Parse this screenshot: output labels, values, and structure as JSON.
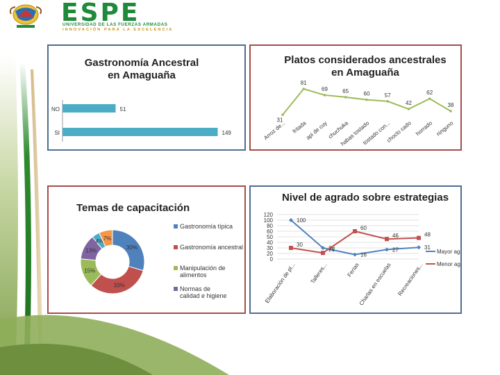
{
  "header": {
    "brand": "ESPE",
    "subtitle_1": "UNIVERSIDAD DE LAS FUERZAS ARMADAS",
    "subtitle_2": "INNOVACIÓN PARA LA EXCELENCIA"
  },
  "colors": {
    "blue": "#4bacc6",
    "green_line": "#9bbb59",
    "series_blue": "#4f81bd",
    "series_red": "#c0504d",
    "purple": "#8064a2",
    "orange": "#f79646",
    "brand_green": "#1e8a3a"
  },
  "chart_data": [
    {
      "id": "gastronomia",
      "type": "bar",
      "orientation": "horizontal",
      "title": "Gastronomía Ancestral en Amaguaña",
      "categories": [
        "NO",
        "SI"
      ],
      "values": [
        51,
        149
      ],
      "data_labels": [
        "51",
        "149"
      ],
      "xlim": [
        0,
        160
      ]
    },
    {
      "id": "platos",
      "type": "line",
      "title": "Platos considerados ancestrales en Amaguaña",
      "categories": [
        "Arroz de...",
        "fritada",
        "api de cuy",
        "chuchuka",
        "habas tostado",
        "tostado con...",
        "choclo cado",
        "horrado",
        "ninguno"
      ],
      "values": [
        31,
        81,
        69,
        65,
        60,
        57,
        42,
        62,
        38
      ],
      "data_labels": [
        "31",
        "81",
        "69",
        "65",
        "60",
        "57",
        "42",
        "62",
        "38"
      ]
    },
    {
      "id": "temas",
      "type": "pie",
      "title": "Temas de capacitación",
      "slices": [
        {
          "label": "Gastronomía típica",
          "value": 30,
          "display": "30%",
          "color": "#4f81bd"
        },
        {
          "label": "Gastronomía ancestral",
          "value": 33,
          "display": "33%",
          "color": "#c0504d"
        },
        {
          "label": "Manipulación de alimentos",
          "value": 15,
          "display": "15%",
          "color": "#9bbb59"
        },
        {
          "label": "Normas de calidad e higiene",
          "value": 13,
          "display": "13%",
          "color": "#8064a2"
        },
        {
          "label": "",
          "value": 4,
          "display": "4%",
          "color": "#4bacc6"
        },
        {
          "label": "",
          "value": 7,
          "display": "7%",
          "color": "#f79646"
        }
      ],
      "legend_position": "right"
    },
    {
      "id": "agrado",
      "type": "line",
      "title": "Nivel de agrado sobre estrategias",
      "categories": [
        "Elaboración de pl...",
        "Talleres...",
        "Ferias",
        "Charlas en escuelas",
        "Recreaciones..."
      ],
      "y_ticks": [
        "0",
        "20",
        "30",
        "40",
        "50",
        "60",
        "80",
        "100",
        "120"
      ],
      "ylim": [
        0,
        120
      ],
      "series": [
        {
          "name": "Mayor agrado",
          "values": [
            100,
            30,
            16,
            27,
            31
          ],
          "labels": [
            "100",
            "30",
            "16",
            "27",
            "31"
          ],
          "color": "#4f81bd"
        },
        {
          "name": "Menor agrado",
          "values": [
            30,
            21,
            60,
            46,
            48
          ],
          "labels": [
            "30",
            "21",
            "60",
            "46",
            "48"
          ],
          "color": "#c0504d"
        }
      ],
      "grid": true,
      "legend_position": "right"
    }
  ]
}
